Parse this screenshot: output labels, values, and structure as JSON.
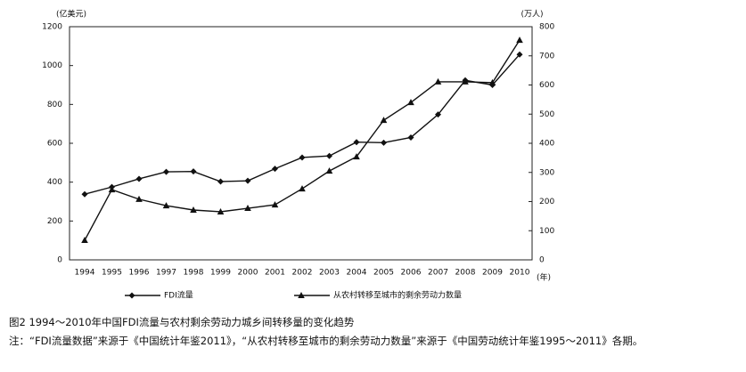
{
  "chart_data": {
    "type": "line",
    "y_label": "(亿美元)",
    "y2_label": "(万人)",
    "x_label": "(年)",
    "categories": [
      "1994",
      "1995",
      "1996",
      "1997",
      "1998",
      "1999",
      "2000",
      "2001",
      "2002",
      "2003",
      "2004",
      "2005",
      "2006",
      "2007",
      "2008",
      "2009",
      "2010"
    ],
    "series": [
      {
        "name": "FDI流量",
        "color": "#111111",
        "marker": "diamond",
        "values": [
          338,
          375,
          417,
          453,
          455,
          403,
          407,
          469,
          527,
          535,
          606,
          603,
          630,
          748,
          924,
          900,
          1057
        ]
      },
      {
        "name": "从农村转移至城市的剩余劳动力数量",
        "color": "#111111",
        "marker": "triangle",
        "axis": "y2",
        "values": [
          67,
          241,
          208,
          186,
          171,
          165,
          177,
          189,
          244,
          305,
          354,
          479,
          540,
          611,
          611,
          608,
          754
        ]
      }
    ],
    "ylim": [
      0,
      1200
    ],
    "yticks": [
      0,
      200,
      400,
      600,
      800,
      1000,
      1200
    ],
    "y2lim": [
      0,
      800
    ],
    "y2ticks": [
      0,
      100,
      200,
      300,
      400,
      500,
      600,
      700,
      800
    ]
  },
  "caption": "图2   1994～2010年中国FDI流量与农村剩余劳动力城乡间转移量的变化趋势",
  "note": "注：“FDI流量数据”来源于《中国统计年鉴2011》，“从农村转移至城市的剩余劳动力数量”来源于《中国劳动统计年鉴1995～2011》各期。"
}
